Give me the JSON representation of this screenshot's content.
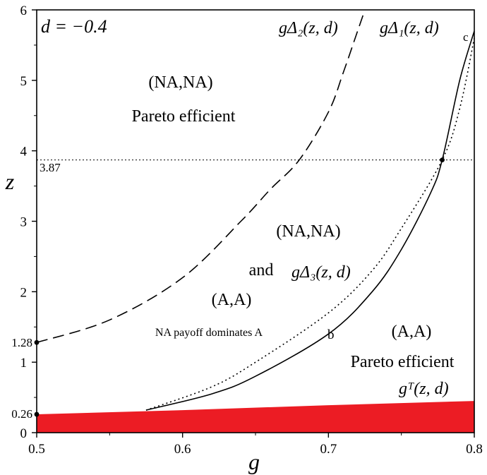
{
  "chart_data": {
    "type": "line",
    "parameter_label": "d = −0.4",
    "xlabel": "g",
    "ylabel": "z",
    "xlim": [
      0.5,
      0.8
    ],
    "ylim": [
      0,
      6
    ],
    "x_ticks": [
      "0.5",
      "0.6",
      "0.7",
      "0.8"
    ],
    "y_ticks": [
      "0",
      "1",
      "2",
      "3",
      "4",
      "5",
      "6"
    ],
    "series": [
      {
        "name": "gΔ₂(z, d)",
        "style": "dashed",
        "points": [
          [
            0.5,
            1.28
          ],
          [
            0.55,
            1.6
          ],
          [
            0.6,
            2.2
          ],
          [
            0.64,
            3.0
          ],
          [
            0.66,
            3.45
          ],
          [
            0.68,
            3.87
          ],
          [
            0.7,
            4.55
          ],
          [
            0.71,
            5.1
          ],
          [
            0.72,
            5.7
          ],
          [
            0.725,
            6.0
          ]
        ]
      },
      {
        "name": "gΔ₁(z, d)",
        "style": "solid",
        "points": [
          [
            0.575,
            0.32
          ],
          [
            0.62,
            0.55
          ],
          [
            0.65,
            0.8
          ],
          [
            0.7,
            1.4
          ],
          [
            0.73,
            2.0
          ],
          [
            0.75,
            2.6
          ],
          [
            0.77,
            3.4
          ],
          [
            0.778,
            3.87
          ],
          [
            0.79,
            5.0
          ],
          [
            0.8,
            5.7
          ]
        ]
      },
      {
        "name": "gΔ₃(z, d)",
        "style": "dotted",
        "points": [
          [
            0.575,
            0.32
          ],
          [
            0.62,
            0.65
          ],
          [
            0.65,
            1.0
          ],
          [
            0.7,
            1.7
          ],
          [
            0.73,
            2.3
          ],
          [
            0.75,
            2.9
          ],
          [
            0.778,
            3.87
          ],
          [
            0.79,
            4.6
          ],
          [
            0.8,
            5.6
          ]
        ]
      },
      {
        "name": "gᵀ(z, d)",
        "style": "filled",
        "color": "#ec1c24",
        "points": [
          [
            0.5,
            0.26
          ],
          [
            0.6,
            0.32
          ],
          [
            0.7,
            0.39
          ],
          [
            0.8,
            0.45
          ]
        ]
      }
    ],
    "hline": {
      "y": 3.87,
      "label": "3.87",
      "style": "dotted"
    },
    "marked_points": [
      {
        "x": 0.5,
        "y": 1.28,
        "label": "1.28"
      },
      {
        "x": 0.5,
        "y": 0.26,
        "label": "0.26"
      },
      {
        "x": 0.778,
        "y": 3.87
      }
    ],
    "annotations": {
      "region_top": [
        "(NA,NA)",
        "Pareto efficient"
      ],
      "region_middle": [
        "(NA,NA)",
        "and",
        "(A,A)"
      ],
      "region_middle_note": "NA payoff dominates A",
      "region_right": [
        "(A,A)",
        "Pareto efficient"
      ],
      "point_b": "b",
      "point_c": "c"
    },
    "colors": {
      "lines": "#000000",
      "fill": "#ec1c24",
      "background": "#ffffff"
    },
    "grid": false
  }
}
